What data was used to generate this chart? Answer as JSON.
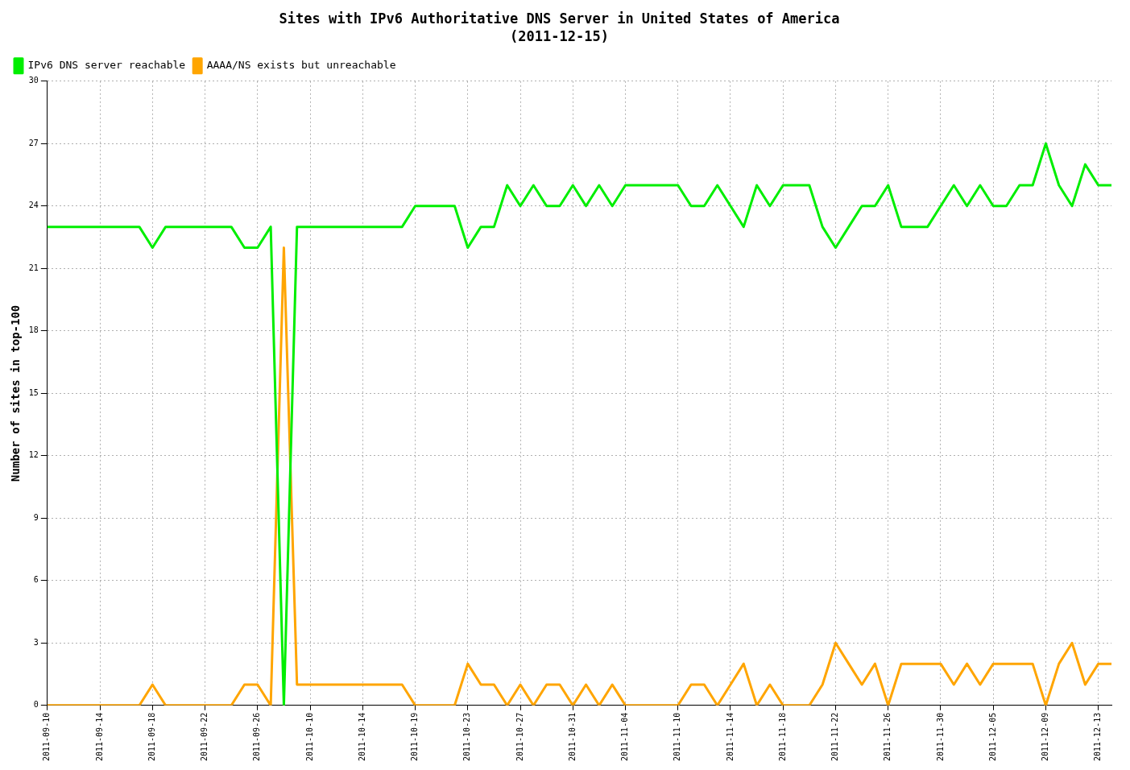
{
  "chart_data": {
    "type": "line",
    "title": "Sites with IPv6 Authoritative DNS Server in United States of America",
    "subtitle": "(2011-12-15)",
    "ylabel": "Number of sites in top-100",
    "categories": [
      "2011-09-10",
      null,
      null,
      null,
      "2011-09-14",
      null,
      null,
      null,
      "2011-09-18",
      null,
      null,
      null,
      "2011-09-22",
      null,
      null,
      null,
      "2011-09-26",
      null,
      null,
      null,
      "2011-10-10",
      null,
      null,
      null,
      "2011-10-14",
      null,
      null,
      null,
      "2011-10-19",
      null,
      null,
      null,
      "2011-10-23",
      null,
      null,
      null,
      "2011-10-27",
      null,
      null,
      null,
      "2011-10-31",
      null,
      null,
      null,
      "2011-11-04",
      null,
      null,
      null,
      "2011-11-10",
      null,
      null,
      null,
      "2011-11-14",
      null,
      null,
      null,
      "2011-11-18",
      null,
      null,
      null,
      "2011-11-22",
      null,
      null,
      null,
      "2011-11-26",
      null,
      null,
      null,
      "2011-11-30",
      null,
      null,
      null,
      "2011-12-05",
      null,
      null,
      null,
      "2011-12-09",
      null,
      null,
      null,
      "2011-12-13",
      null
    ],
    "series": [
      {
        "name": "IPv6 DNS server reachable",
        "color": "#00ee00",
        "values": [
          23,
          23,
          23,
          23,
          23,
          23,
          23,
          23,
          22,
          23,
          23,
          23,
          23,
          23,
          23,
          22,
          22,
          23,
          0,
          23,
          23,
          23,
          23,
          23,
          23,
          23,
          23,
          23,
          24,
          24,
          24,
          24,
          22,
          23,
          23,
          25,
          24,
          25,
          24,
          24,
          25,
          24,
          25,
          24,
          25,
          25,
          25,
          25,
          25,
          24,
          24,
          25,
          24,
          23,
          25,
          24,
          25,
          25,
          25,
          23,
          22,
          23,
          24,
          24,
          25,
          23,
          23,
          23,
          24,
          25,
          24,
          25,
          24,
          24,
          25,
          25,
          27,
          25,
          24,
          26,
          25,
          25
        ]
      },
      {
        "name": "AAAA/NS exists but unreachable",
        "color": "#ffa500",
        "values": [
          0,
          0,
          0,
          0,
          0,
          0,
          0,
          0,
          1,
          0,
          0,
          0,
          0,
          0,
          0,
          1,
          1,
          0,
          22,
          1,
          1,
          1,
          1,
          1,
          1,
          1,
          1,
          1,
          0,
          0,
          0,
          0,
          2,
          1,
          1,
          0,
          1,
          0,
          1,
          1,
          0,
          1,
          0,
          1,
          0,
          0,
          0,
          0,
          0,
          1,
          1,
          0,
          1,
          2,
          0,
          1,
          0,
          0,
          0,
          1,
          3,
          2,
          1,
          2,
          0,
          2,
          2,
          2,
          2,
          1,
          2,
          1,
          2,
          2,
          2,
          2,
          0,
          2,
          3,
          1,
          2,
          2
        ]
      }
    ],
    "ylim": [
      0,
      30
    ],
    "yticks": [
      0,
      3,
      6,
      9,
      12,
      15,
      18,
      21,
      24,
      27,
      30
    ],
    "grid": true,
    "legend": "top left",
    "marker": "none",
    "line_style": "solid"
  }
}
